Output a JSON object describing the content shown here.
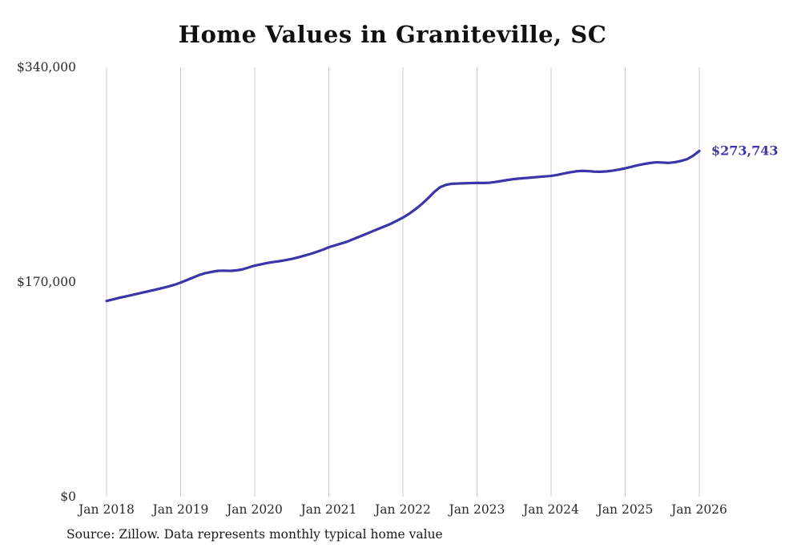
{
  "title": "Home Values in Graniteville, SC",
  "source_note": "Source: Zillow. Data represents monthly typical home value",
  "colors": {
    "line": "#3b35a9",
    "grid": "#cccccc",
    "axis_text": "#2b2b2b",
    "end_label": "#3b35a9"
  },
  "chart_data": {
    "type": "line",
    "title": "Home Values in Graniteville, SC",
    "xlabel": "",
    "ylabel": "",
    "ylim": [
      0,
      340000
    ],
    "grid": "vertical-only",
    "legend": "none",
    "y_ticks": [
      {
        "value": 0,
        "label": "$0"
      },
      {
        "value": 170000,
        "label": "$170,000"
      },
      {
        "value": 340000,
        "label": "$340,000"
      }
    ],
    "x_ticks": [
      "Jan 2018",
      "Jan 2019",
      "Jan 2020",
      "Jan 2021",
      "Jan 2022",
      "Jan 2023",
      "Jan 2024",
      "Jan 2025",
      "Jan 2026"
    ],
    "series": [
      {
        "name": "Typical home value (monthly)",
        "start": "2018-01",
        "end": "2026-01",
        "interval": "monthly",
        "values": [
          155000,
          156200,
          157400,
          158500,
          159600,
          160700,
          161800,
          162900,
          164000,
          165200,
          166400,
          167800,
          169500,
          171500,
          173500,
          175500,
          177000,
          178000,
          178800,
          179000,
          178800,
          179200,
          180000,
          181500,
          183000,
          184000,
          185000,
          185800,
          186500,
          187300,
          188300,
          189500,
          190800,
          192200,
          193800,
          195500,
          197500,
          199000,
          200500,
          202000,
          204000,
          206000,
          208000,
          210000,
          212000,
          214000,
          216000,
          218500,
          221000,
          224000,
          227500,
          231500,
          236000,
          241000,
          245000,
          247000,
          247800,
          248000,
          248200,
          248300,
          248500,
          248400,
          248600,
          249200,
          250000,
          250800,
          251500,
          252000,
          252400,
          252800,
          253200,
          253600,
          254000,
          254800,
          255800,
          256800,
          257600,
          258000,
          257800,
          257400,
          257300,
          257600,
          258200,
          259000,
          260000,
          261200,
          262400,
          263400,
          264200,
          264800,
          264600,
          264300,
          264800,
          265800,
          267200,
          270000,
          273743
        ]
      }
    ],
    "end_annotation": {
      "text": "$273,743",
      "value": 273743
    }
  }
}
